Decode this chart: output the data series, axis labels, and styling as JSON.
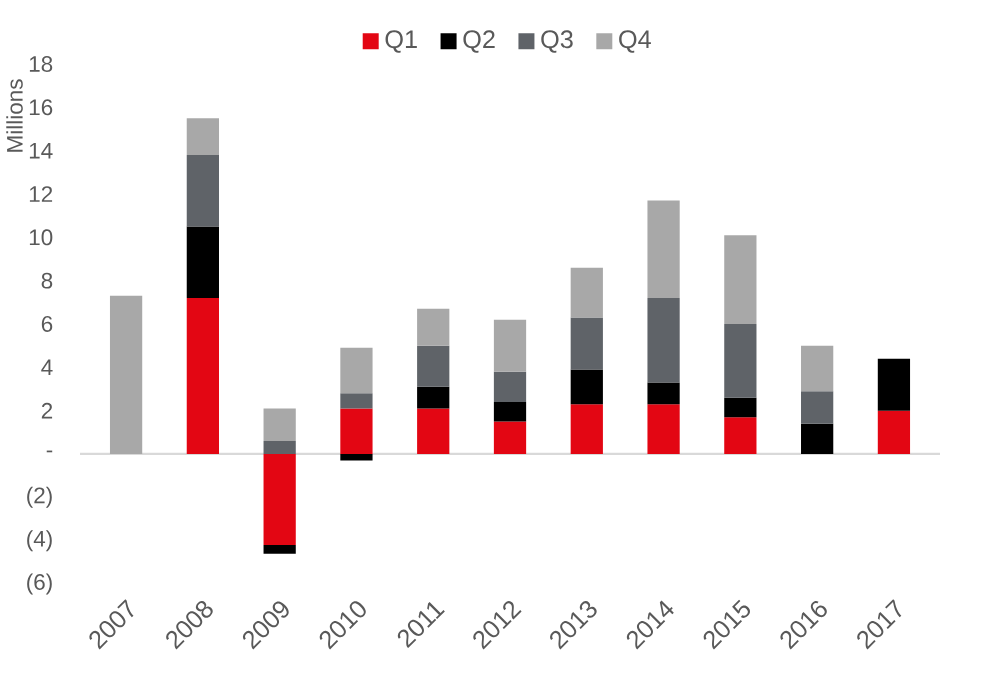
{
  "chart_data": {
    "type": "bar",
    "stacked": true,
    "ylabel": "Millions",
    "categories": [
      "2007",
      "2008",
      "2009",
      "2010",
      "2011",
      "2012",
      "2013",
      "2014",
      "2015",
      "2016",
      "2017"
    ],
    "series": [
      {
        "name": "Q1",
        "color": "#e30613",
        "values": [
          null,
          7.2,
          -4.2,
          2.1,
          2.1,
          1.5,
          2.3,
          2.3,
          1.7,
          null,
          2.0
        ]
      },
      {
        "name": "Q2",
        "color": "#000000",
        "values": [
          null,
          3.3,
          -0.4,
          -0.3,
          1.0,
          0.9,
          1.6,
          1.0,
          0.9,
          1.4,
          2.4
        ]
      },
      {
        "name": "Q3",
        "color": "#5f6368",
        "values": [
          null,
          3.3,
          0.6,
          0.7,
          1.9,
          1.4,
          2.4,
          3.9,
          3.4,
          1.5,
          null
        ]
      },
      {
        "name": "Q4",
        "color": "#a8a8a8",
        "values": [
          7.3,
          1.7,
          1.5,
          2.1,
          1.7,
          2.4,
          2.3,
          4.5,
          4.1,
          2.1,
          null
        ]
      }
    ],
    "ylim": [
      -6,
      18
    ],
    "yticks": [
      {
        "value": -6,
        "label": "(6)"
      },
      {
        "value": -4,
        "label": "(4)"
      },
      {
        "value": -2,
        "label": "(2)"
      },
      {
        "value": 0,
        "label": "-"
      },
      2,
      4,
      6,
      8,
      10,
      12,
      14,
      16,
      18
    ],
    "ref_lines": [
      {
        "axis": "y",
        "value": 0,
        "color": "#d9d9d9"
      }
    ],
    "legend": "top"
  }
}
